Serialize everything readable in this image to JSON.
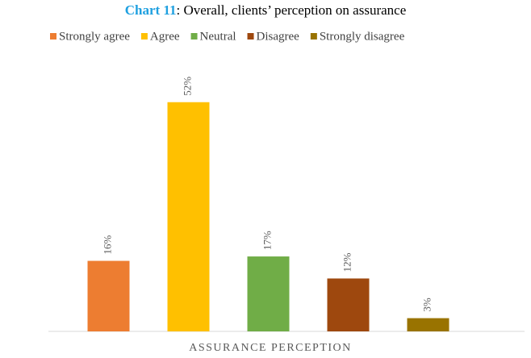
{
  "chart_data": {
    "type": "bar",
    "title_number": "Chart 11",
    "title": ": Overall, clients’ perception on assurance",
    "x_label": "ASSURANCE PERCEPTION",
    "series": [
      {
        "name": "Strongly agree",
        "color": "#ed7d31",
        "values": [
          16
        ],
        "value_labels": [
          "16%"
        ]
      },
      {
        "name": "Agree",
        "color": "#ffc000",
        "values": [
          52
        ],
        "value_labels": [
          "52%"
        ]
      },
      {
        "name": "Neutral",
        "color": "#70ad47",
        "values": [
          17
        ],
        "value_labels": [
          "17%"
        ]
      },
      {
        "name": "Disagree",
        "color": "#9e480e",
        "values": [
          12
        ],
        "value_labels": [
          "12%"
        ]
      },
      {
        "name": "Strongly disagree",
        "color": "#997300",
        "values": [
          3
        ],
        "value_labels": [
          "3%"
        ]
      }
    ],
    "ylim": [
      0,
      60
    ],
    "legend": "top"
  }
}
